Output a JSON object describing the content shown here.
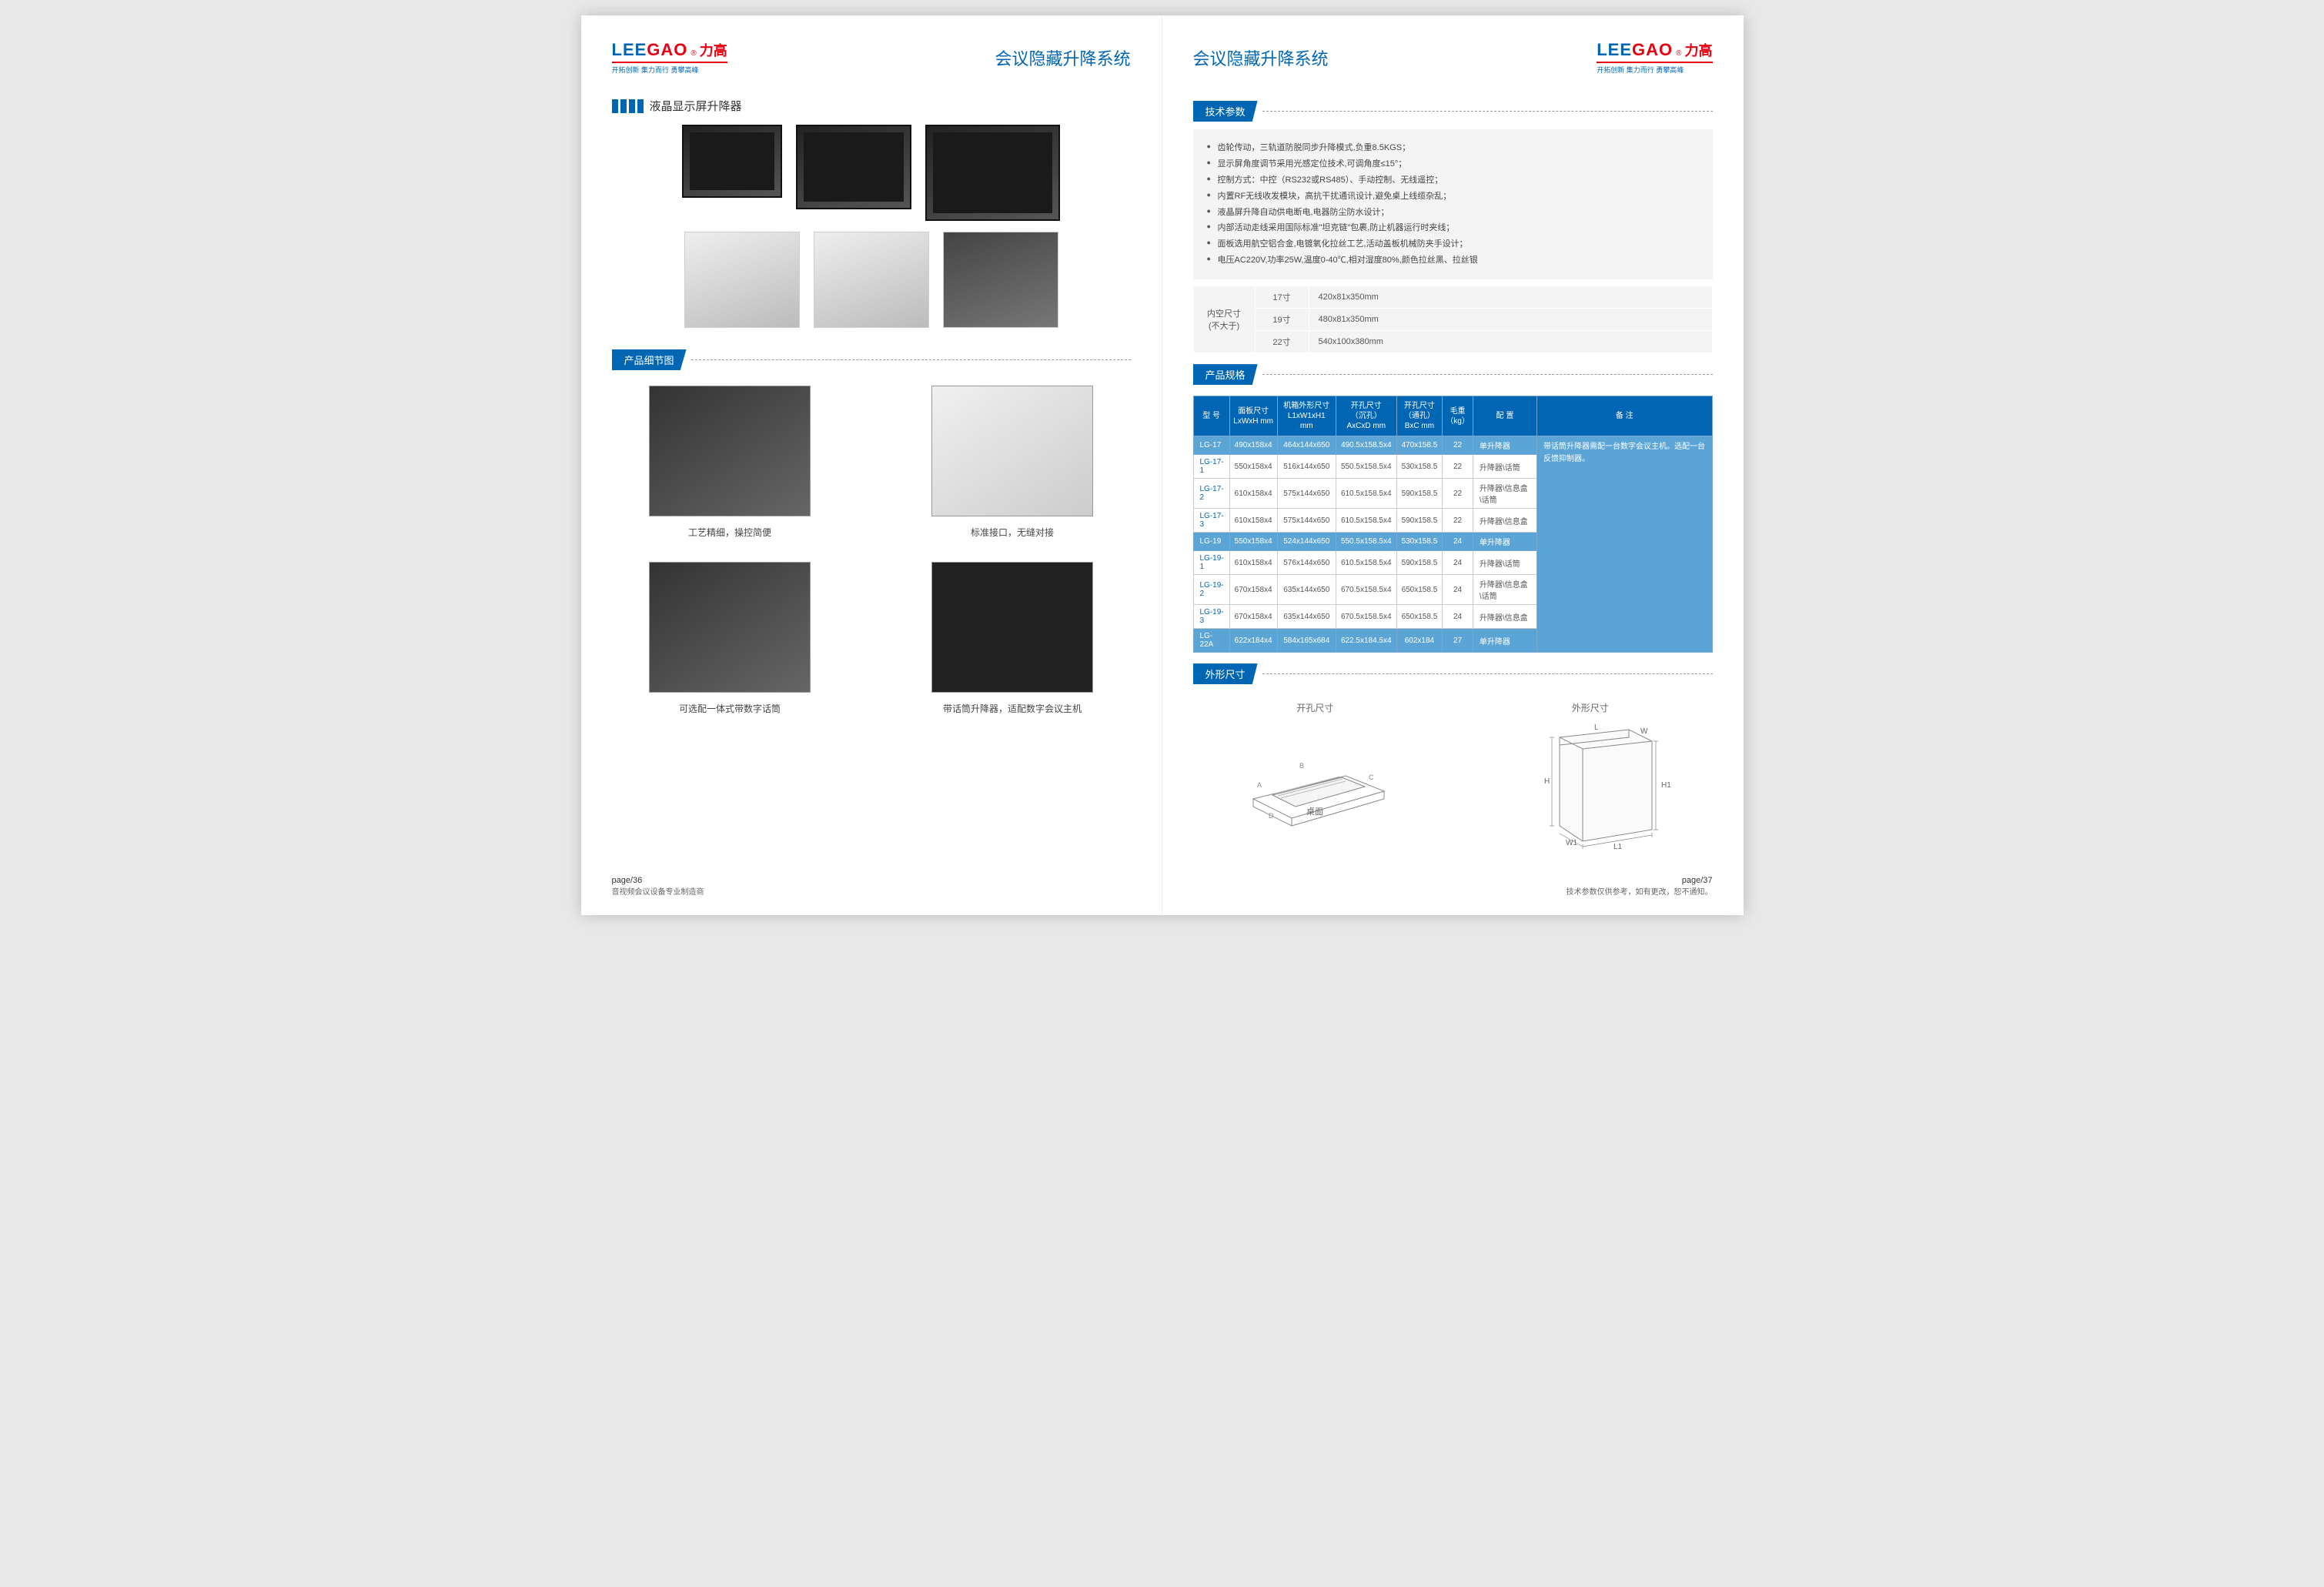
{
  "brand": {
    "en_part1": "LEE",
    "en_part2": "GAO",
    "reg": "®",
    "cn": "力高",
    "tagline": "开拓创新 集力而行 勇攀高峰"
  },
  "left": {
    "page_title": "会议隐藏升降系统",
    "section1": "液晶显示屏升降器",
    "detail_header": "产品细节图",
    "captions": {
      "c1": "工艺精细，操控简便",
      "c2": "标准接口，无缝对接",
      "c3": "可选配一体式带数字话筒",
      "c4": "带话筒升降器，适配数字会议主机"
    },
    "footer_page": "page/36",
    "footer_sub": "音视频会议设备专业制造商"
  },
  "right": {
    "page_title": "会议隐藏升降系统",
    "tech_header": "技术参数",
    "tech_specs": [
      "齿轮传动，三轨道防脱同步升降模式,负重8.5KGS；",
      "显示屏角度调节采用光感定位技术,可调角度≤15°；",
      "控制方式：中控（RS232或RS485）、手动控制、无线遥控；",
      "内置RF无线收发模块，高抗干扰通讯设计,避免桌上线缆杂乱；",
      "液晶屏升降自动供电断电,电器防尘防水设计；",
      "内部活动走线采用国际标准\"坦克链\"包裹,防止机器运行时夹线；",
      "面板选用航空铝合金,电镀氧化拉丝工艺,活动盖板机械防夹手设计；",
      "电压AC220V,功率25W,温度0-40℃,相对湿度80%,颜色拉丝黑、拉丝银"
    ],
    "size_label": "内空尺寸\n(不大于)",
    "sizes": [
      {
        "inch": "17寸",
        "dim": "420x81x350mm"
      },
      {
        "inch": "19寸",
        "dim": "480x81x350mm"
      },
      {
        "inch": "22寸",
        "dim": "540x100x380mm"
      }
    ],
    "spec_header": "产品规格",
    "columns": [
      "型 号",
      "面板尺寸\nLxWxH mm",
      "机箱外形尺寸\nL1xW1xH1 mm",
      "开孔尺寸\n（沉孔）\nAxCxD mm",
      "开孔尺寸\n（通孔）\nBxC mm",
      "毛重\n（kg）",
      "配 置",
      "备 注"
    ],
    "rows": [
      {
        "hl": true,
        "d": [
          "LG-17",
          "490x158x4",
          "464x144x650",
          "490.5x158.5x4",
          "470x158.5",
          "22",
          "单升降器"
        ]
      },
      {
        "hl": false,
        "d": [
          "LG-17-1",
          "550x158x4",
          "516x144x650",
          "550.5x158.5x4",
          "530x158.5",
          "22",
          "升降器\\话筒"
        ]
      },
      {
        "hl": false,
        "d": [
          "LG-17-2",
          "610x158x4",
          "575x144x650",
          "610.5x158.5x4",
          "590x158.5",
          "22",
          "升降器\\信息盒\\话筒"
        ]
      },
      {
        "hl": false,
        "d": [
          "LG-17-3",
          "610x158x4",
          "575x144x650",
          "610.5x158.5x4",
          "590x158.5",
          "22",
          "升降器\\信息盒"
        ]
      },
      {
        "hl": true,
        "d": [
          "LG-19",
          "550x158x4",
          "524x144x650",
          "550.5x158.5x4",
          "530x158.5",
          "24",
          "单升降器"
        ]
      },
      {
        "hl": false,
        "d": [
          "LG-19-1",
          "610x158x4",
          "576x144x650",
          "610.5x158.5x4",
          "590x158.5",
          "24",
          "升降器\\话筒"
        ]
      },
      {
        "hl": false,
        "d": [
          "LG-19-2",
          "670x158x4",
          "635x144x650",
          "670.5x158.5x4",
          "650x158.5",
          "24",
          "升降器\\信息盒\\话筒"
        ]
      },
      {
        "hl": false,
        "d": [
          "LG-19-3",
          "670x158x4",
          "635x144x650",
          "670.5x158.5x4",
          "650x158.5",
          "24",
          "升降器\\信息盒"
        ]
      },
      {
        "hl": true,
        "d": [
          "LG-22A",
          "622x184x4",
          "584x165x684",
          "622.5x184.5x4",
          "602x184",
          "27",
          "单升降器"
        ]
      }
    ],
    "note": "带话筒升降器需配一台数字会议主机。选配一台反馈抑制器。",
    "dim_header": "外形尺寸",
    "dim1_title": "开孔尺寸",
    "dim1_label": "桌面",
    "dim2_title": "外形尺寸",
    "footer_page": "page/37",
    "footer_sub": "技术参数仅供参考，如有更改，恕不通知。"
  }
}
